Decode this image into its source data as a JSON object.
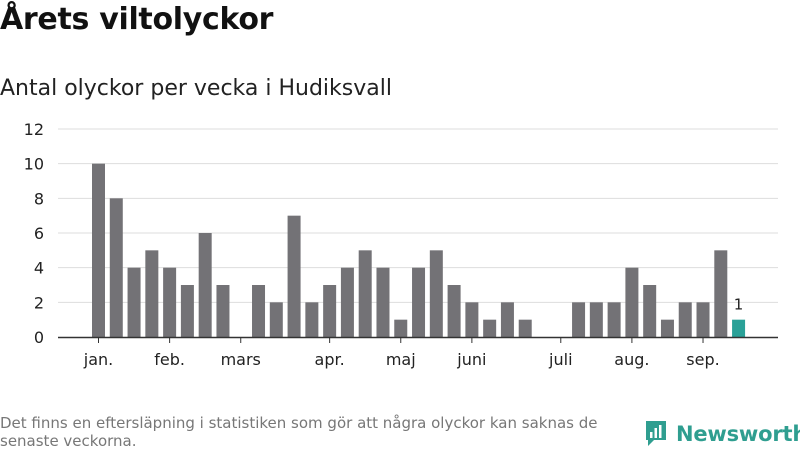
{
  "header": {
    "title": "Årets viltolyckor",
    "subtitle": "Antal olyckor per vecka i Hudiksvall"
  },
  "footer": {
    "note": "Det finns en eftersläpning i statistiken som gör att några olyckor kan saknas de senaste veckorna.",
    "brand": "Newsworthy"
  },
  "colors": {
    "bar": "#737276",
    "highlight": "#2aa198",
    "grid": "#dddddd",
    "brand": "#2f9e90"
  },
  "chart_data": {
    "type": "bar",
    "title": "Årets viltolyckor",
    "subtitle": "Antal olyckor per vecka i Hudiksvall",
    "xlabel": "",
    "ylabel": "",
    "ylim": [
      0,
      12
    ],
    "yticks": [
      0,
      2,
      4,
      6,
      8,
      10,
      12
    ],
    "grid": true,
    "values": [
      10,
      8,
      4,
      5,
      4,
      3,
      6,
      3,
      0,
      3,
      2,
      7,
      2,
      3,
      4,
      5,
      4,
      1,
      4,
      5,
      3,
      2,
      1,
      2,
      1,
      0,
      0,
      2,
      2,
      2,
      4,
      3,
      1,
      2,
      2,
      5,
      1
    ],
    "highlight_index": 36,
    "highlight_label": "1",
    "month_labels": [
      {
        "label": "jan.",
        "week": 0
      },
      {
        "label": "feb.",
        "week": 4
      },
      {
        "label": "mars",
        "week": 8
      },
      {
        "label": "apr.",
        "week": 13
      },
      {
        "label": "maj",
        "week": 17
      },
      {
        "label": "juni",
        "week": 21
      },
      {
        "label": "juli",
        "week": 26
      },
      {
        "label": "aug.",
        "week": 30
      },
      {
        "label": "sep.",
        "week": 34
      }
    ]
  }
}
